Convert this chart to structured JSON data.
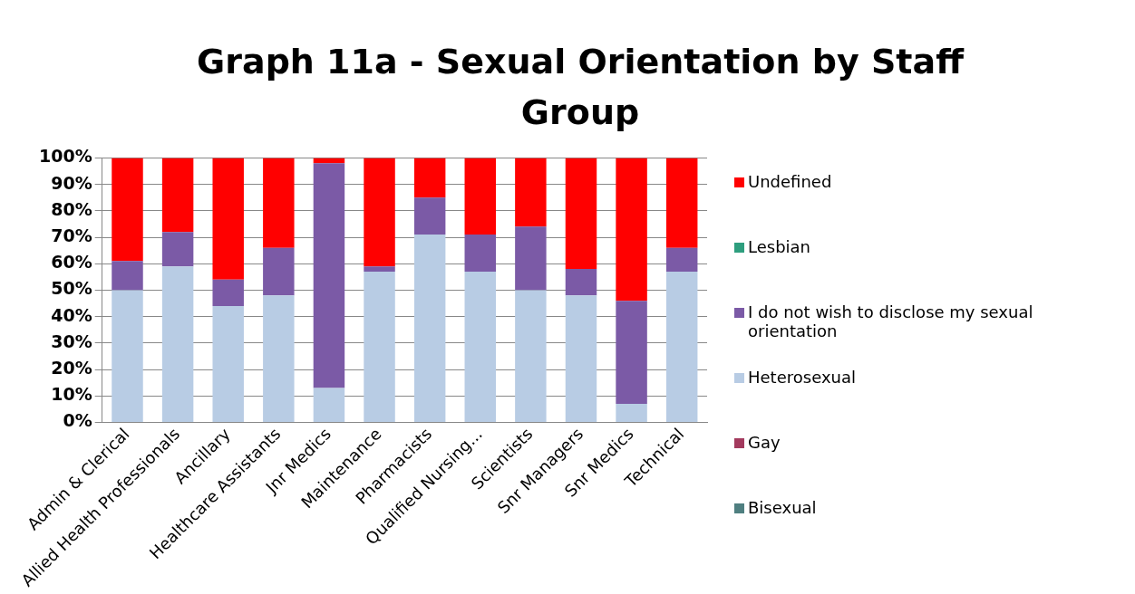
{
  "chart_data": {
    "type": "bar",
    "title": "Graph 11a - Sexual Orientation by Staff Group",
    "stacked": true,
    "categories": [
      "Admin & Clerical",
      "Allied Health Professionals",
      "Ancillary",
      "Healthcare Assistants",
      "Jnr Medics",
      "Maintenance",
      "Pharmacists",
      "Qualified Nursing...",
      "Scientists",
      "Snr Managers",
      "Snr Medics",
      "Technical"
    ],
    "series": [
      {
        "name": "Bisexual",
        "color": "#4f7f80",
        "values": [
          0,
          0,
          0,
          0,
          0,
          0,
          0,
          0,
          0,
          0,
          0,
          0
        ]
      },
      {
        "name": "Gay",
        "color": "#a33a5e",
        "values": [
          0,
          0,
          0,
          0,
          0,
          0,
          0,
          0,
          0,
          0,
          0,
          0
        ]
      },
      {
        "name": "Heterosexual",
        "color": "#b8cce4",
        "values": [
          50,
          59,
          44,
          48,
          13,
          57,
          71,
          57,
          50,
          48,
          7,
          57
        ]
      },
      {
        "name": "I do not wish to disclose my sexual orientation",
        "color": "#7b5aa6",
        "values": [
          11,
          13,
          10,
          18,
          85,
          2,
          14,
          14,
          24,
          10,
          39,
          9
        ]
      },
      {
        "name": "Lesbian",
        "color": "#2e9e7e",
        "values": [
          0,
          0,
          0,
          0,
          0,
          0,
          0,
          0,
          0,
          0,
          0,
          0
        ]
      },
      {
        "name": "Undefined",
        "color": "#ff0000",
        "values": [
          39,
          28,
          46,
          34,
          2,
          41,
          15,
          29,
          26,
          42,
          54,
          34
        ]
      }
    ],
    "ylim": [
      0,
      100
    ],
    "yticks": [
      {
        "value": 0,
        "label": "0%"
      },
      {
        "value": 10,
        "label": "10%"
      },
      {
        "value": 20,
        "label": "20%"
      },
      {
        "value": 30,
        "label": "30%"
      },
      {
        "value": 40,
        "label": "40%"
      },
      {
        "value": 50,
        "label": "50%"
      },
      {
        "value": 60,
        "label": "60%"
      },
      {
        "value": 70,
        "label": "70%"
      },
      {
        "value": 80,
        "label": "80%"
      },
      {
        "value": 90,
        "label": "90%"
      },
      {
        "value": 100,
        "label": "100%"
      }
    ],
    "grid": "y",
    "legend": "right"
  }
}
